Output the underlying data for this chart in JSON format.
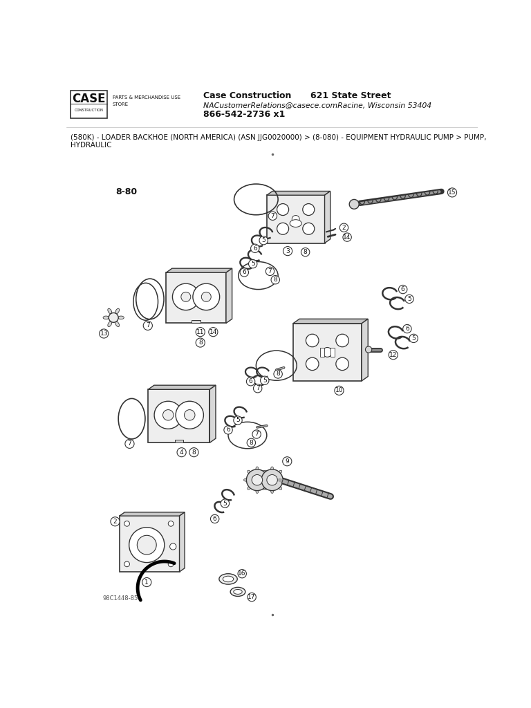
{
  "title_company": "Case Construction",
  "title_address": "621 State Street",
  "title_email": "NACustomerRelations@casece.comRacine, Wisconsin 53404",
  "title_phone": "866-542-2736 x1",
  "breadcrumb1": "(580K) - LOADER BACKHOE (NORTH AMERICA) (ASN JJG0020000) > (8-080) - EQUIPMENT HYDRAULIC PUMP > PUMP,",
  "breadcrumb2": "HYDRAULIC",
  "diagram_label": "8-80",
  "footer_code": "98C1448-85",
  "bg_color": "#ffffff",
  "lc": "#333333",
  "tc": "#111111",
  "body_fill": "#d8d8d8",
  "light_fill": "#eeeeee",
  "mid_fill": "#c8c8c8"
}
